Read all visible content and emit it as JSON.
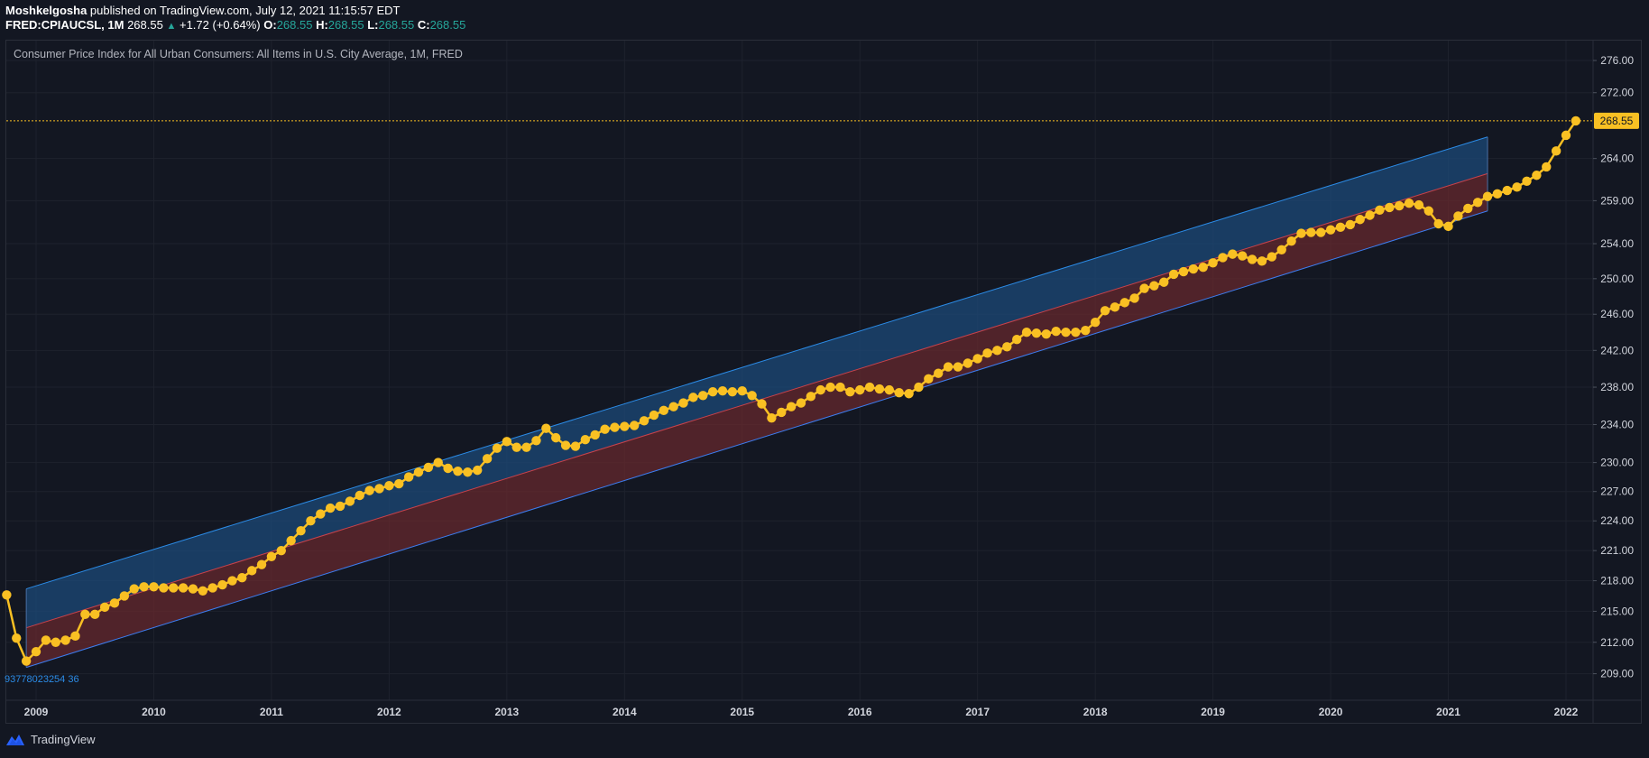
{
  "header": {
    "author": "Moshkelgosha",
    "published_text": "published on TradingView.com, July 12, 2021 11:15:57 EDT",
    "symbol": "FRED:CPIAUCSL, 1M",
    "last": "268.55",
    "change": "+1.72 (+0.64%)",
    "ohlc": [
      {
        "label": "O:",
        "value": "268.55"
      },
      {
        "label": "H:",
        "value": "268.55"
      },
      {
        "label": "L:",
        "value": "268.55"
      },
      {
        "label": "C:",
        "value": "268.55"
      }
    ]
  },
  "footer": {
    "brand": "TradingView",
    "icon": "tradingview-logo-icon"
  },
  "colors": {
    "background": "#131722",
    "grid": "#1e222d",
    "series": "#f9c023",
    "channel_upper_fill": "#1c4a78",
    "channel_lower_fill": "#6b2a2e",
    "channel_upper_line": "#2b8be6",
    "channel_mid_line": "#c8424b",
    "channel_lower_line": "#3d7df0",
    "price_label_bg": "#f9c023",
    "axis_text": "#d1d4dc"
  },
  "chart_data": {
    "type": "line",
    "title": "Consumer Price Index for All Urban Consumers: All Items in U.S. City Average, 1M, FRED",
    "xlabel": "",
    "ylabel": "",
    "scale": "log",
    "ylim": [
      206.5,
      278.5
    ],
    "xlim": [
      "2008-10",
      "2022-07"
    ],
    "x_ticks": [
      "2009",
      "2010",
      "2011",
      "2012",
      "2013",
      "2014",
      "2015",
      "2016",
      "2017",
      "2018",
      "2019",
      "2020",
      "2021",
      "2022"
    ],
    "y_ticks": [
      "276.00",
      "272.00",
      "264.00",
      "259.00",
      "254.00",
      "250.00",
      "246.00",
      "242.00",
      "238.00",
      "234.00",
      "230.00",
      "227.00",
      "224.00",
      "221.00",
      "218.00",
      "215.00",
      "212.00",
      "209.00"
    ],
    "current_price_label": "268.55",
    "annotation": "93778023254 36",
    "series": [
      {
        "start": "2008-10",
        "frequency": "monthly",
        "values": [
          216.6,
          212.4,
          210.2,
          211.1,
          212.2,
          212.0,
          212.2,
          212.6,
          214.7,
          214.7,
          215.4,
          215.8,
          216.5,
          217.2,
          217.4,
          217.4,
          217.3,
          217.3,
          217.3,
          217.2,
          217.0,
          217.3,
          217.6,
          218.0,
          218.3,
          219.0,
          219.6,
          220.4,
          221.0,
          222.0,
          223.0,
          224.0,
          224.7,
          225.3,
          225.5,
          226.0,
          226.6,
          227.1,
          227.3,
          227.6,
          227.8,
          228.5,
          229.0,
          229.5,
          230.0,
          229.4,
          229.1,
          229.0,
          229.2,
          230.4,
          231.5,
          232.2,
          231.6,
          231.6,
          232.3,
          233.6,
          232.6,
          231.8,
          231.7,
          232.4,
          232.9,
          233.5,
          233.7,
          233.8,
          233.9,
          234.4,
          235.0,
          235.5,
          235.9,
          236.3,
          236.9,
          237.1,
          237.5,
          237.6,
          237.5,
          237.6,
          237.1,
          236.2,
          234.7,
          235.3,
          235.9,
          236.3,
          237.0,
          237.7,
          238.0,
          238.0,
          237.5,
          237.7,
          238.0,
          237.8,
          237.7,
          237.4,
          237.3,
          238.0,
          238.9,
          239.5,
          240.2,
          240.2,
          240.6,
          241.1,
          241.7,
          242.0,
          242.4,
          243.2,
          244.0,
          243.9,
          243.8,
          244.1,
          244.0,
          244.0,
          244.2,
          245.1,
          246.4,
          246.8,
          247.3,
          247.8,
          248.9,
          249.2,
          249.6,
          250.5,
          250.8,
          251.1,
          251.3,
          251.8,
          252.4,
          252.8,
          252.6,
          252.2,
          252.0,
          252.5,
          253.3,
          254.3,
          255.2,
          255.3,
          255.3,
          255.6,
          255.9,
          256.2,
          256.8,
          257.3,
          257.9,
          258.2,
          258.4,
          258.7,
          258.5,
          257.8,
          256.3,
          256.0,
          257.2,
          258.1,
          258.8,
          259.5,
          259.8,
          260.2,
          260.6,
          261.3,
          262.0,
          263.0,
          264.9,
          266.8,
          268.55
        ]
      }
    ],
    "regression_channel": {
      "start": "2008-12",
      "end": "2021-05",
      "upper": [
        217.2,
        266.6
      ],
      "middle": [
        213.4,
        262.2
      ],
      "lower": [
        209.6,
        257.8
      ]
    }
  }
}
